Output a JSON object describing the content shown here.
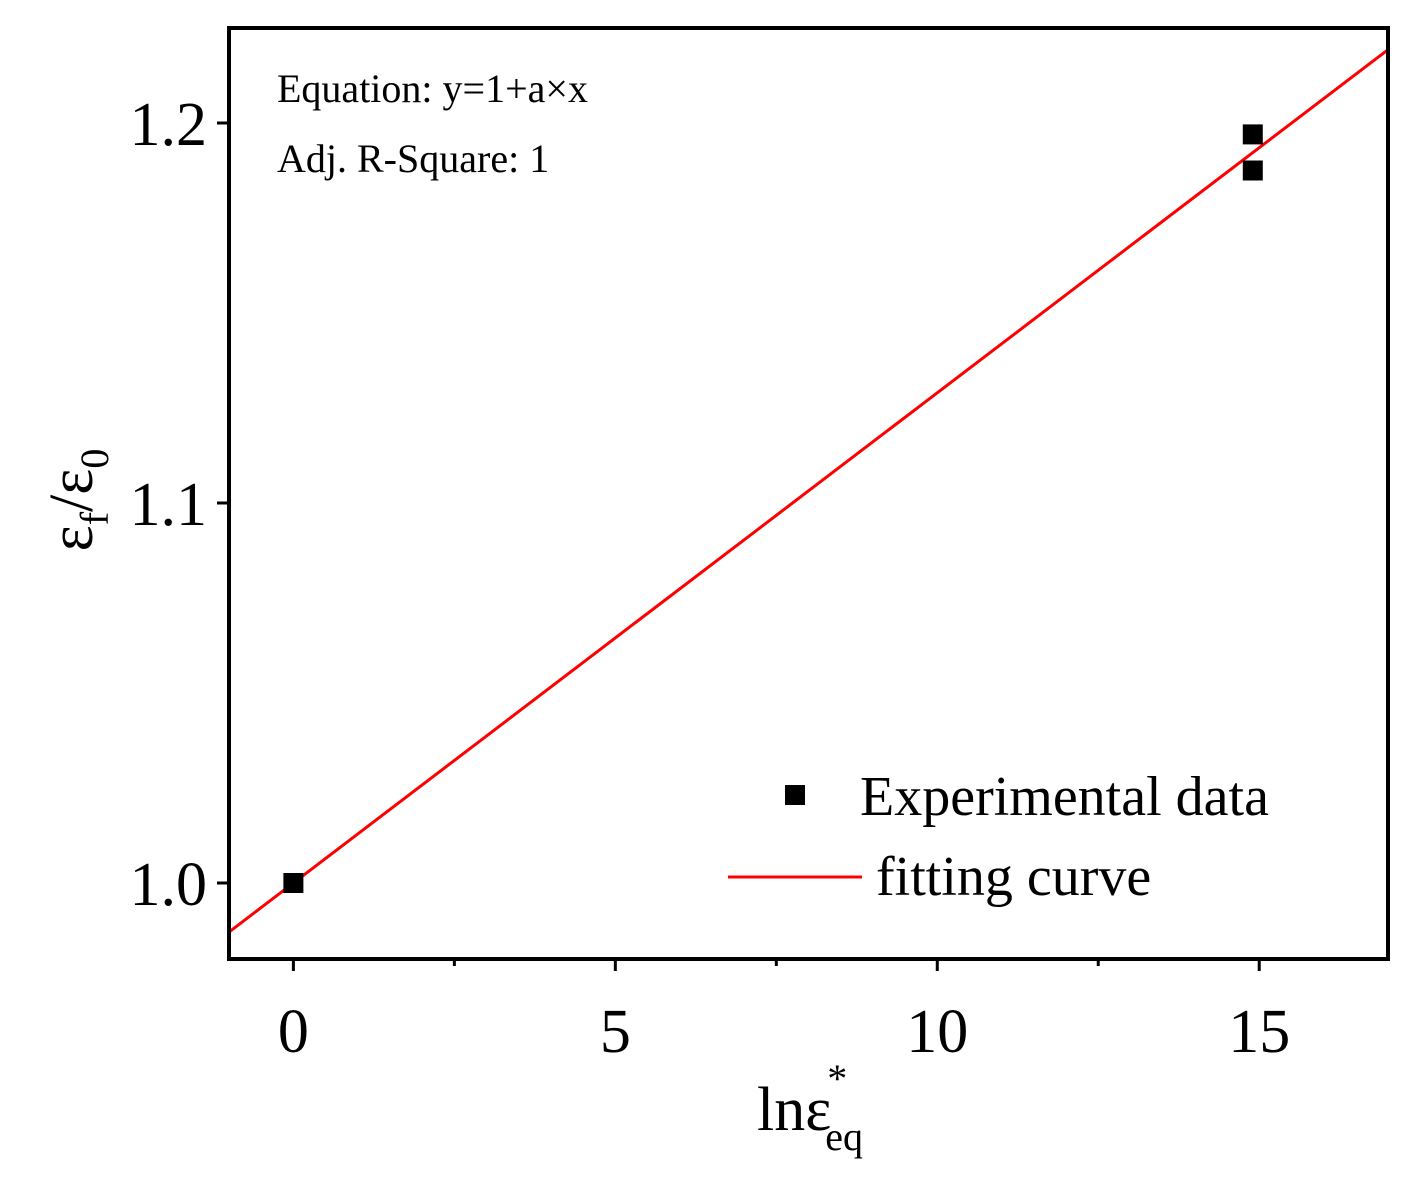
{
  "chart_data": {
    "type": "scatter",
    "title": "",
    "xlabel": {
      "main": "lnε",
      "superscript": "*",
      "subscript": "eq"
    },
    "ylabel": {
      "part1": "ε",
      "sub1": "f",
      "slash": "/",
      "part2": "ε",
      "sub2": "0"
    },
    "xlim": [
      -1,
      17
    ],
    "ylim": [
      0.98,
      1.225
    ],
    "xticks": [
      0,
      5,
      10,
      15
    ],
    "xtick_labels": [
      "0",
      "5",
      "10",
      "15"
    ],
    "xminor_ticks": [
      2.5,
      7.5,
      12.5
    ],
    "yticks": [
      1.0,
      1.1,
      1.2
    ],
    "ytick_labels": [
      "1.0",
      "1.1",
      "1.2"
    ],
    "series": [
      {
        "name": "Experimental data",
        "kind": "scatter",
        "color": "#000000",
        "points": [
          {
            "x": 0,
            "y": 1.0
          },
          {
            "x": 14.9,
            "y": 1.197
          },
          {
            "x": 14.9,
            "y": 1.1875
          }
        ]
      },
      {
        "name": "fitting curve",
        "kind": "line",
        "color": "#ff0000",
        "equation": "y = 1 + a*x",
        "a": 0.0129,
        "x_range": [
          -1,
          17
        ]
      }
    ],
    "annotations": [
      "Equation: y=1+a×x",
      "Adj. R-Square: 1"
    ],
    "legend": {
      "placement": "bottom-right",
      "entries": [
        "Experimental data",
        "fitting curve"
      ]
    },
    "grid": false
  }
}
